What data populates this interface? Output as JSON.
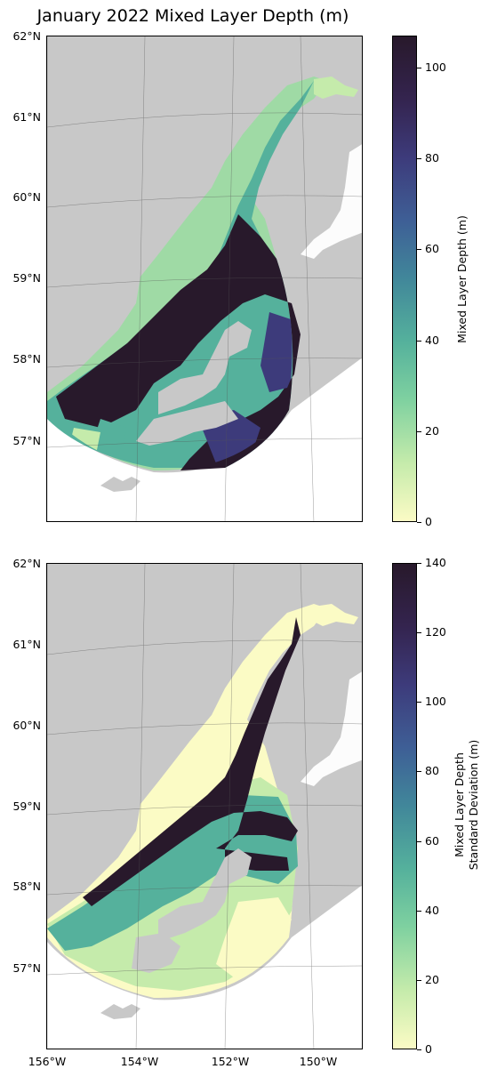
{
  "title": "January 2022 Mixed Layer Depth (m)",
  "latitude_labels": [
    "62°N",
    "61°N",
    "60°N",
    "59°N",
    "58°N",
    "57°N"
  ],
  "longitude_labels": [
    "156°W",
    "154°W",
    "152°W",
    "150°W"
  ],
  "colors": {
    "land": "#c8c8c8",
    "ocean_background": "#ffffff",
    "colormap": [
      "#fbfbc5",
      "#c5ebab",
      "#7fd1a0",
      "#55b19c",
      "#41879a",
      "#3e5f96",
      "#3d3b7b",
      "#34244f",
      "#28192b"
    ]
  },
  "panels": [
    {
      "name": "mixed-layer-depth",
      "colorbar_label": "Mixed Layer Depth (m)",
      "colorbar_ticks": [
        "0",
        "20",
        "40",
        "60",
        "80",
        "100"
      ],
      "colorbar_max": 107
    },
    {
      "name": "mixed-layer-depth-std",
      "colorbar_label_line1": "Mixed Layer Depth",
      "colorbar_label_line2": "Standard Deviation (m)",
      "colorbar_ticks": [
        "0",
        "20",
        "40",
        "60",
        "80",
        "100",
        "120",
        "140"
      ],
      "colorbar_max": 140
    }
  ]
}
